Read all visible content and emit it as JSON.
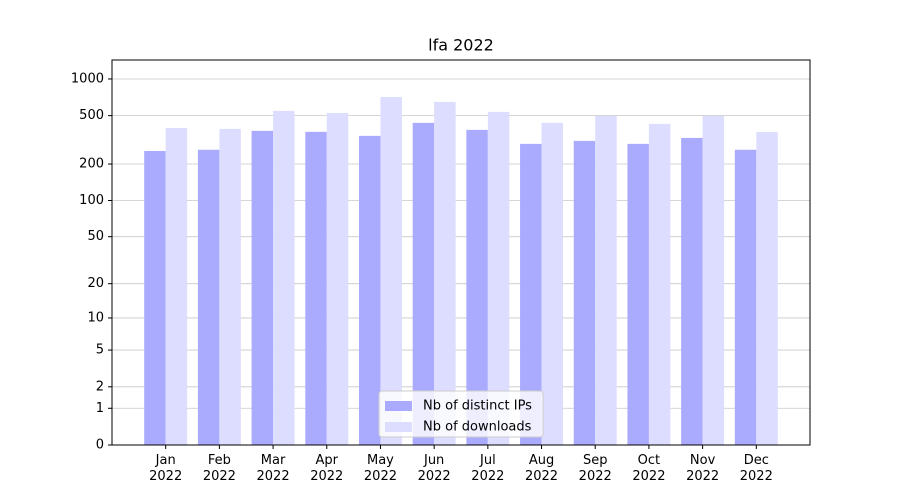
{
  "chart_data": {
    "type": "bar",
    "title": "lfa 2022",
    "categories": [
      "Jan\n2022",
      "Feb\n2022",
      "Mar\n2022",
      "Apr\n2022",
      "May\n2022",
      "Jun\n2022",
      "Jul\n2022",
      "Aug\n2022",
      "Sep\n2022",
      "Oct\n2022",
      "Nov\n2022",
      "Dec\n2022"
    ],
    "series": [
      {
        "name": "Nb of distinct IPs",
        "color": "#aaaaff",
        "values": [
          256,
          262,
          375,
          368,
          341,
          436,
          382,
          293,
          310,
          293,
          328,
          262
        ]
      },
      {
        "name": "Nb of downloads",
        "color": "#ddddff",
        "values": [
          396,
          389,
          547,
          526,
          712,
          648,
          537,
          436,
          497,
          428,
          497,
          367
        ]
      }
    ],
    "y_scale": "log1p",
    "ylim": [
      0,
      1431
    ],
    "yticks": [
      0,
      1,
      2,
      5,
      10,
      20,
      50,
      100,
      200,
      500,
      1000
    ],
    "grid": true,
    "legend": "lower center"
  }
}
